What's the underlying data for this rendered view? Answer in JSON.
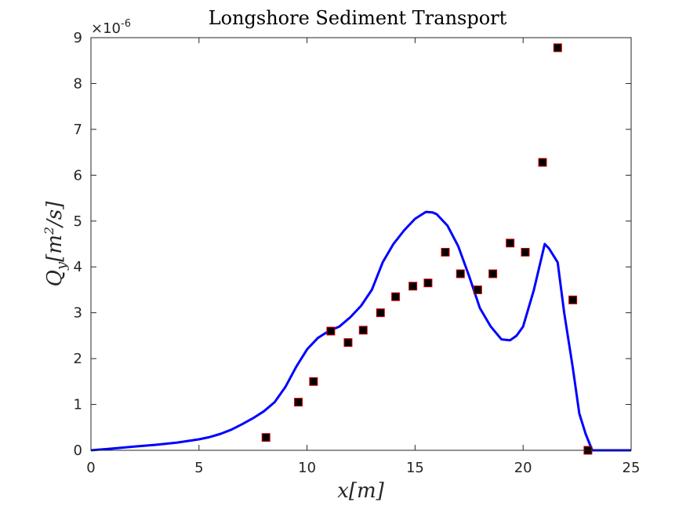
{
  "chart_data": {
    "type": "line",
    "title": "Longshore Sediment Transport",
    "xlabel": "x[m]",
    "ylabel": "Qy[m2/s]",
    "ylabel_parts": {
      "base": "Q",
      "sub": "y",
      "unit_open": "[",
      "unit_m": "m",
      "unit_exp": "2",
      "unit_rest": "/s]"
    },
    "y_exponent_label": {
      "prefix": "×10",
      "exp": "-6"
    },
    "xlim": [
      0,
      25
    ],
    "ylim": [
      0,
      9
    ],
    "xticks": [
      0,
      5,
      10,
      15,
      20,
      25
    ],
    "yticks": [
      0,
      1,
      2,
      3,
      4,
      5,
      6,
      7,
      8,
      9
    ],
    "grid": false,
    "series": [
      {
        "type": "line",
        "color": "#0000ff",
        "x": [
          0,
          1,
          2,
          3,
          4,
          5,
          5.5,
          6,
          6.5,
          7,
          7.5,
          8,
          8.5,
          9,
          9.5,
          10,
          10.5,
          11,
          11.5,
          12,
          12.5,
          13,
          13.5,
          14,
          14.5,
          15,
          15.5,
          15.8,
          16,
          16.5,
          17,
          17.5,
          18,
          18.5,
          19,
          19.4,
          19.7,
          20,
          20.5,
          21,
          21.2,
          21.6,
          21.9,
          22.3,
          22.6,
          22.9,
          23.2,
          25
        ],
        "y": [
          0,
          0.04,
          0.08,
          0.12,
          0.17,
          0.24,
          0.29,
          0.36,
          0.45,
          0.57,
          0.7,
          0.85,
          1.05,
          1.38,
          1.82,
          2.2,
          2.45,
          2.6,
          2.7,
          2.9,
          3.15,
          3.5,
          4.1,
          4.5,
          4.8,
          5.05,
          5.2,
          5.19,
          5.15,
          4.9,
          4.45,
          3.8,
          3.1,
          2.7,
          2.42,
          2.4,
          2.5,
          2.7,
          3.5,
          4.5,
          4.4,
          4.1,
          3.0,
          1.8,
          0.8,
          0.35,
          0,
          0
        ]
      },
      {
        "type": "scatter",
        "marker": "square",
        "face_color": "#000000",
        "edge_color": "#d40000",
        "x": [
          8.1,
          9.6,
          10.3,
          11.1,
          11.9,
          12.6,
          13.4,
          14.1,
          14.9,
          15.6,
          16.4,
          17.1,
          17.9,
          18.6,
          19.4,
          20.1,
          20.9,
          21.6,
          22.3,
          23.0
        ],
        "y": [
          0.28,
          1.05,
          1.5,
          2.6,
          2.35,
          2.62,
          3.0,
          3.35,
          3.58,
          3.65,
          4.32,
          3.85,
          3.5,
          3.85,
          4.52,
          4.32,
          6.28,
          8.78,
          3.28,
          0.0
        ]
      }
    ]
  }
}
